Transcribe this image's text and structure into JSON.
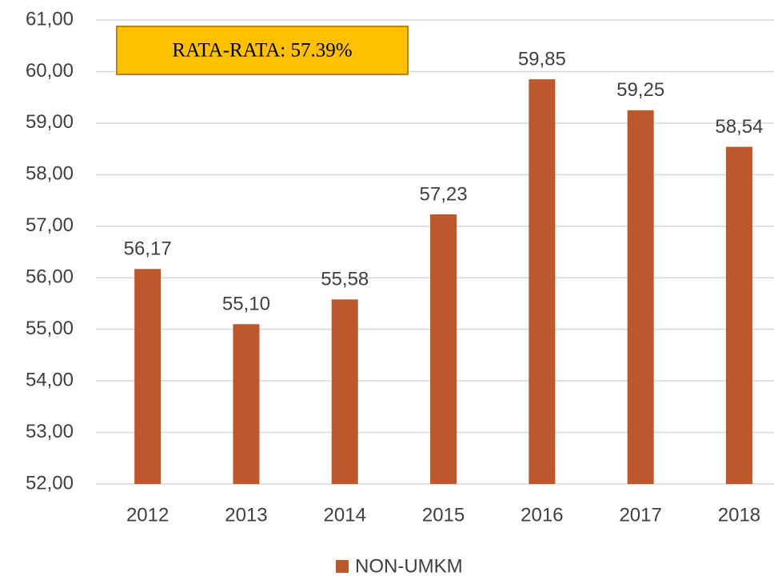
{
  "chart_data": {
    "type": "bar",
    "categories": [
      "2012",
      "2013",
      "2014",
      "2015",
      "2016",
      "2017",
      "2018"
    ],
    "series": [
      {
        "name": "NON-UMKM",
        "color": "#bd582c",
        "values": [
          56.17,
          55.1,
          55.58,
          57.23,
          59.85,
          59.25,
          58.54
        ],
        "value_labels": [
          "56,17",
          "55,10",
          "55,58",
          "57,23",
          "59,85",
          "59,25",
          "58,54"
        ]
      }
    ],
    "ylim": [
      52,
      61
    ],
    "yticks": [
      {
        "value": 52,
        "label": "52,00"
      },
      {
        "value": 53,
        "label": "53,00"
      },
      {
        "value": 54,
        "label": "54,00"
      },
      {
        "value": 55,
        "label": "55,00"
      },
      {
        "value": 56,
        "label": "56,00"
      },
      {
        "value": 57,
        "label": "57,00"
      },
      {
        "value": 58,
        "label": "58,00"
      },
      {
        "value": 59,
        "label": "59,00"
      },
      {
        "value": 60,
        "label": "60,00"
      },
      {
        "value": 61,
        "label": "61,00"
      }
    ],
    "grid": true,
    "legend": "bottom",
    "annotation": "RATA-RATA: 57.39%"
  }
}
